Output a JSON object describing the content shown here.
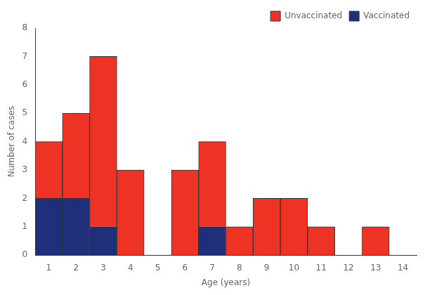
{
  "chart_data": {
    "type": "bar",
    "xlabel": "Age (years)",
    "ylabel": "Number of cases",
    "x": [
      1,
      2,
      3,
      4,
      5,
      6,
      7,
      8,
      9,
      10,
      11,
      12,
      13,
      14
    ],
    "series": [
      {
        "name": "Vaccinated",
        "color": "#1f2f7a",
        "values": [
          2,
          2,
          1,
          0,
          0,
          0,
          1,
          0,
          0,
          0,
          0,
          0,
          0,
          0
        ]
      },
      {
        "name": "Unvaccinated",
        "color": "#ee3224",
        "values": [
          2,
          3,
          6,
          3,
          0,
          3,
          3,
          1,
          2,
          2,
          1,
          0,
          1,
          0
        ]
      }
    ],
    "stacked": true,
    "xlim": [
      0.5,
      14.5
    ],
    "xticks": [
      1,
      2,
      3,
      4,
      5,
      6,
      7,
      8,
      9,
      10,
      11,
      12,
      13,
      14
    ],
    "ylim": [
      0,
      8
    ],
    "yticks": [
      0,
      1,
      2,
      3,
      4,
      5,
      6,
      7,
      8
    ],
    "grid": false,
    "legend": "upper right"
  }
}
